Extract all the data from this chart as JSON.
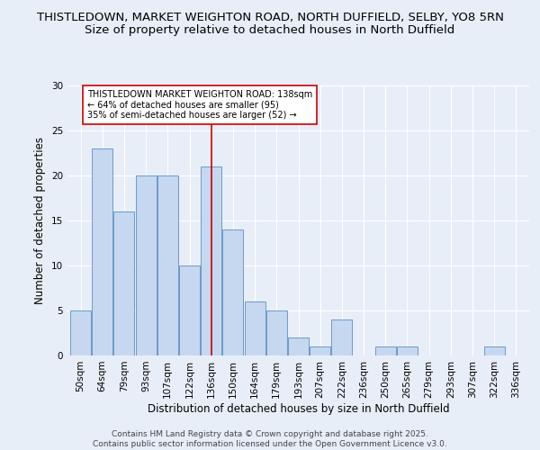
{
  "title1": "THISTLEDOWN, MARKET WEIGHTON ROAD, NORTH DUFFIELD, SELBY, YO8 5RN",
  "title2": "Size of property relative to detached houses in North Duffield",
  "xlabel": "Distribution of detached houses by size in North Duffield",
  "ylabel": "Number of detached properties",
  "categories": [
    "50sqm",
    "64sqm",
    "79sqm",
    "93sqm",
    "107sqm",
    "122sqm",
    "136sqm",
    "150sqm",
    "164sqm",
    "179sqm",
    "193sqm",
    "207sqm",
    "222sqm",
    "236sqm",
    "250sqm",
    "265sqm",
    "279sqm",
    "293sqm",
    "307sqm",
    "322sqm",
    "336sqm"
  ],
  "values": [
    5,
    23,
    16,
    20,
    20,
    10,
    21,
    14,
    6,
    5,
    2,
    1,
    4,
    0,
    1,
    1,
    0,
    0,
    0,
    1,
    0
  ],
  "bar_color": "#c5d8f0",
  "bar_edge_color": "#5a8fc0",
  "vline_x": 6,
  "vline_color": "#cc0000",
  "annotation_text": "THISTLEDOWN MARKET WEIGHTON ROAD: 138sqm\n← 64% of detached houses are smaller (95)\n35% of semi-detached houses are larger (52) →",
  "annotation_box_color": "#ffffff",
  "annotation_box_edge": "#cc0000",
  "ylim": [
    0,
    30
  ],
  "yticks": [
    0,
    5,
    10,
    15,
    20,
    25,
    30
  ],
  "footer": "Contains HM Land Registry data © Crown copyright and database right 2025.\nContains public sector information licensed under the Open Government Licence v3.0.",
  "bg_color": "#e8eef8",
  "plot_bg_color": "#e8eef8",
  "title_fontsize": 9.5,
  "title2_fontsize": 9.5,
  "axis_label_fontsize": 8.5,
  "tick_fontsize": 7.5,
  "footer_fontsize": 6.5
}
